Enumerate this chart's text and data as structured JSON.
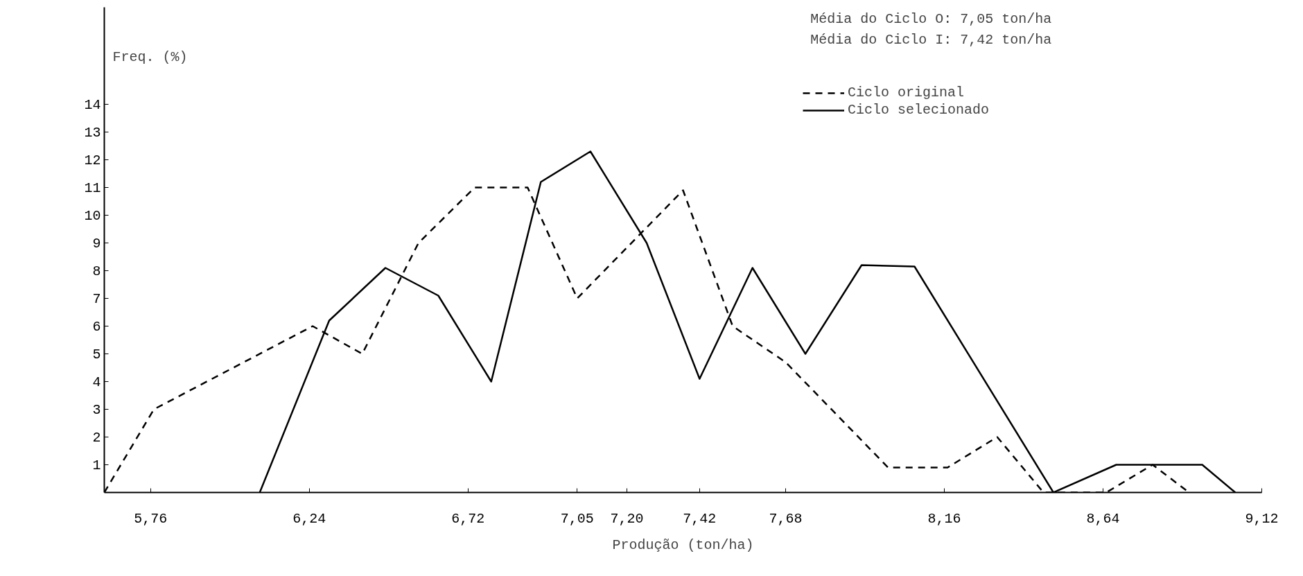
{
  "chart_data": {
    "type": "line",
    "xlabel": "Produção (ton/ha)",
    "ylabel": "Freq. (%)",
    "annotations": [
      "Média do Ciclo O: 7,05 ton/ha",
      "Média do Ciclo I: 7,42 ton/ha"
    ],
    "series": [
      {
        "name": "Ciclo original",
        "color": "#000000",
        "line_style": "dashed",
        "x": [
          5.62,
          5.77,
          6.25,
          6.4,
          6.57,
          6.74,
          6.9,
          7.05,
          7.37,
          7.52,
          7.68,
          7.99,
          8.17,
          8.32,
          8.46,
          8.65,
          8.79,
          8.9
        ],
        "values": [
          0,
          3,
          6,
          5,
          9,
          11,
          11,
          7,
          10.9,
          6,
          4.7,
          0.9,
          0.9,
          2,
          0,
          0,
          1,
          0
        ]
      },
      {
        "name": "Ciclo selecionado",
        "color": "#000000",
        "line_style": "solid",
        "x": [
          6.09,
          6.3,
          6.47,
          6.63,
          6.79,
          6.94,
          7.09,
          7.26,
          7.42,
          7.58,
          7.74,
          7.91,
          8.07,
          8.49,
          8.68,
          8.94,
          9.04
        ],
        "values": [
          0,
          6.2,
          8.1,
          7.1,
          4.0,
          11.2,
          12.3,
          9.0,
          4.1,
          8.1,
          5.0,
          8.2,
          8.15,
          0,
          1,
          1,
          0
        ]
      }
    ],
    "xlim": [
      5.62,
      9.12
    ],
    "xticks": [
      {
        "value": 5.76,
        "label": "5,76"
      },
      {
        "value": 6.24,
        "label": "6,24"
      },
      {
        "value": 6.72,
        "label": "6,72"
      },
      {
        "value": 7.05,
        "label": "7,05"
      },
      {
        "value": 7.2,
        "label": "7,20"
      },
      {
        "value": 7.42,
        "label": "7,42"
      },
      {
        "value": 7.68,
        "label": "7,68"
      },
      {
        "value": 8.16,
        "label": "8,16"
      },
      {
        "value": 8.64,
        "label": "8,64"
      },
      {
        "value": 9.12,
        "label": "9,12"
      }
    ],
    "ylim": [
      0,
      17.5
    ],
    "yticks": [
      1,
      2,
      3,
      4,
      5,
      6,
      7,
      8,
      9,
      10,
      11,
      12,
      13,
      14
    ],
    "legend": "top right",
    "marker": "none"
  }
}
